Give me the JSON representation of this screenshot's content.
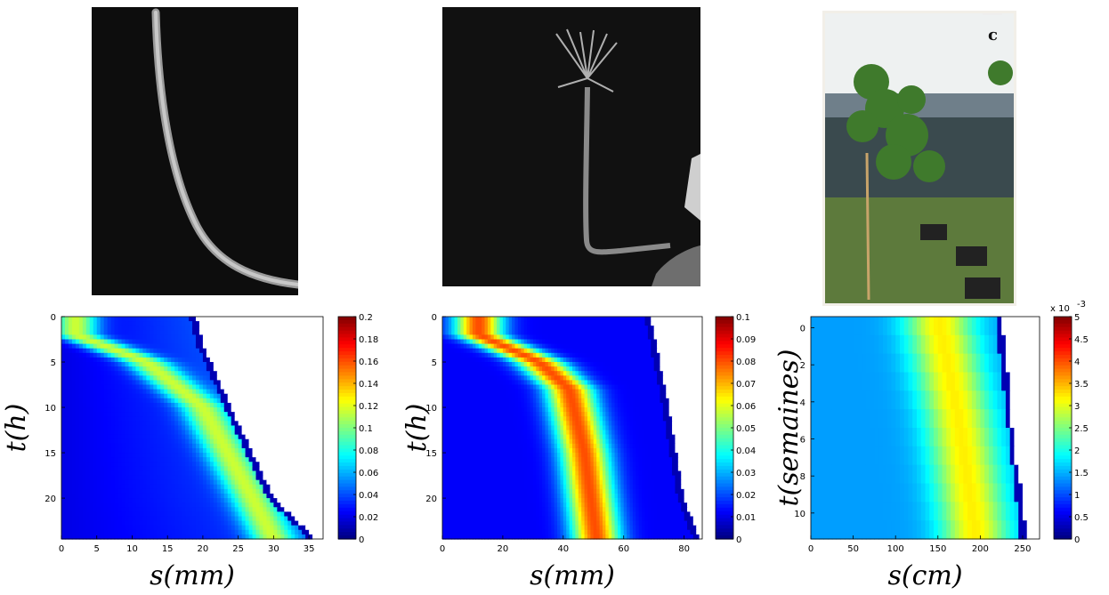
{
  "photos": [
    {
      "name": "root-photo",
      "content": "grayscale plant root bending on black background"
    },
    {
      "name": "flower-stem-photo",
      "content": "grayscale flower stem curving upward on black background"
    },
    {
      "name": "tree-photo",
      "content": "young trees tilted in pots outdoors",
      "letter": "c"
    }
  ],
  "chart_data": [
    {
      "type": "heatmap",
      "xlabel": "s(mm)",
      "ylabel": "t(h)",
      "xlim": [
        0,
        37
      ],
      "ylim": [
        24.5,
        0
      ],
      "xticks": [
        0,
        5,
        10,
        15,
        20,
        25,
        30,
        35
      ],
      "yticks": [
        0,
        5,
        10,
        15,
        20
      ],
      "colorbar": {
        "min": 0,
        "max": 0.2,
        "ticks": [
          0,
          0.02,
          0.04,
          0.06,
          0.08,
          0.1,
          0.12,
          0.14,
          0.16,
          0.18,
          0.2
        ],
        "tick_labels": [
          "0",
          "0.02",
          "0.04",
          "0.06",
          "0.08",
          "0.1",
          "0.12",
          "0.14",
          "0.16",
          "0.18",
          "0.2"
        ],
        "multiplier": ""
      },
      "field": {
        "front": [
          [
            0,
            19
          ],
          [
            3,
            20
          ],
          [
            10,
            24
          ],
          [
            20,
            30
          ],
          [
            24.5,
            36
          ]
        ],
        "ridge": [
          [
            2,
            2
          ],
          [
            5,
            12
          ],
          [
            10,
            20
          ],
          [
            20,
            27
          ],
          [
            24.5,
            30
          ]
        ],
        "ridge_peak": 0.115,
        "ridge_width": 3.2,
        "base_left": 0.02,
        "base_right": 0.04
      }
    },
    {
      "type": "heatmap",
      "xlabel": "s(mm)",
      "ylabel": "t(h)",
      "xlim": [
        0,
        86
      ],
      "ylim": [
        24.5,
        0
      ],
      "xticks": [
        0,
        20,
        40,
        60,
        80
      ],
      "yticks": [
        0,
        5,
        10,
        15,
        20
      ],
      "colorbar": {
        "min": 0,
        "max": 0.1,
        "ticks": [
          0,
          0.01,
          0.02,
          0.03,
          0.04,
          0.05,
          0.06,
          0.07,
          0.08,
          0.09,
          0.1
        ],
        "tick_labels": [
          "0",
          "0.01",
          "0.02",
          "0.03",
          "0.04",
          "0.05",
          "0.06",
          "0.07",
          "0.08",
          "0.09",
          "0.1"
        ],
        "multiplier": ""
      },
      "field": {
        "front": [
          [
            0,
            69
          ],
          [
            5,
            72
          ],
          [
            10,
            75
          ],
          [
            20,
            80
          ],
          [
            24.5,
            85
          ]
        ],
        "ridge": [
          [
            2,
            12
          ],
          [
            5,
            32
          ],
          [
            8,
            42
          ],
          [
            15,
            47
          ],
          [
            24.5,
            51
          ]
        ],
        "ridge_peak": 0.08,
        "ridge_width": 8,
        "base_left": 0.012,
        "base_right": 0.012
      }
    },
    {
      "type": "heatmap",
      "xlabel": "s(cm)",
      "ylabel": "t(semaines)",
      "xlim": [
        0,
        270
      ],
      "ylim": [
        11.4,
        -0.6
      ],
      "xticks": [
        0,
        50,
        100,
        150,
        200,
        250
      ],
      "yticks": [
        0,
        2,
        4,
        6,
        8,
        10
      ],
      "colorbar": {
        "min": 0,
        "max": 5,
        "ticks": [
          0,
          0.5,
          1,
          1.5,
          2,
          2.5,
          3,
          3.5,
          4,
          4.5,
          5
        ],
        "tick_labels": [
          "0",
          "0.5",
          "1",
          "1.5",
          "2",
          "2.5",
          "3",
          "3.5",
          "4",
          "4.5",
          "5"
        ],
        "multiplier": "x 10",
        "multiplier_exponent": "-3"
      },
      "field": {
        "front": [
          [
            -0.6,
            225
          ],
          [
            4,
            235
          ],
          [
            8,
            245
          ],
          [
            11.4,
            255
          ]
        ],
        "ridge": [
          [
            -0.6,
            150
          ],
          [
            5,
            175
          ],
          [
            11.4,
            195
          ]
        ],
        "ridge_peak": 3.2,
        "ridge_width": 40,
        "base_left": 1.4,
        "base_right": 1.4
      }
    }
  ]
}
